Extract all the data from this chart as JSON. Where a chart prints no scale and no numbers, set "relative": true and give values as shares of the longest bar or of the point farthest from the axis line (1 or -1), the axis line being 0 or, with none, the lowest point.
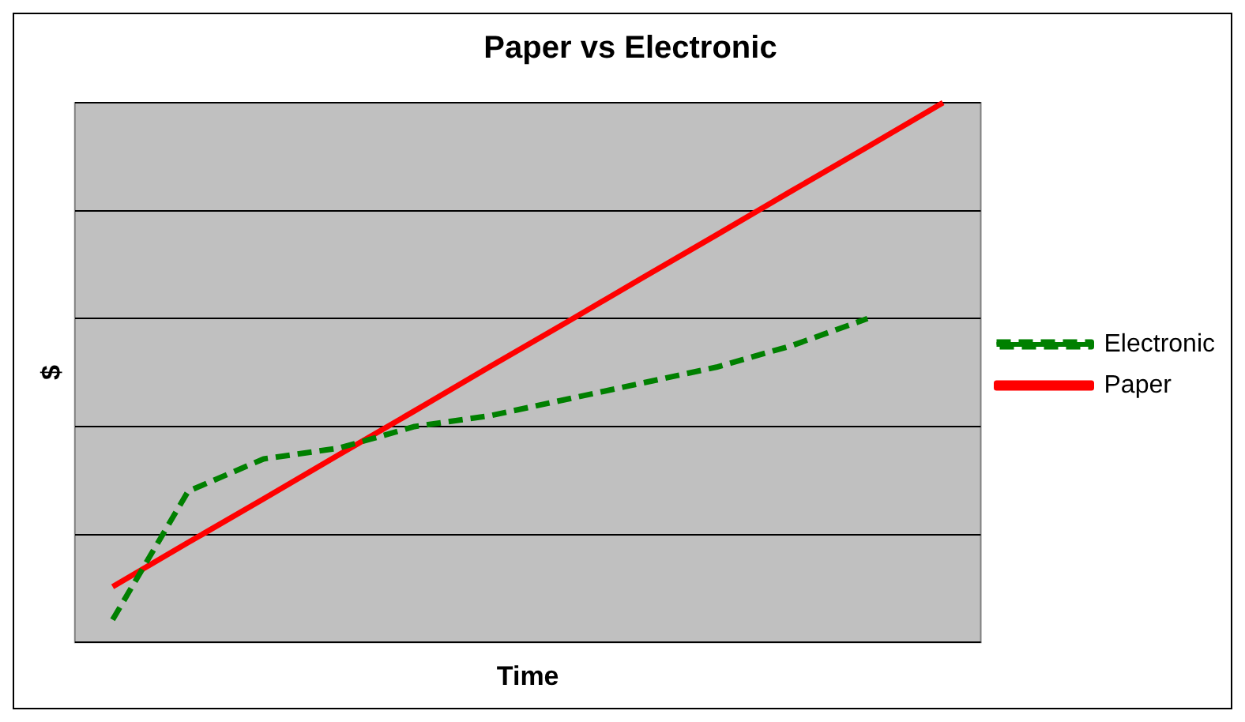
{
  "chart_data": {
    "type": "line",
    "title": "Paper vs Electronic",
    "xlabel": "Time",
    "ylabel": "$",
    "relative": true,
    "grid": "y",
    "legend": "right",
    "marker": "none",
    "categories": [
      null,
      null,
      null,
      null,
      null,
      null,
      null,
      null,
      null,
      null,
      null,
      null
    ],
    "series": [
      {
        "name": "Electronic",
        "color": "#008000",
        "line_style": "dashed",
        "values": [
          0.042,
          0.28,
          0.34,
          0.36,
          0.4,
          0.42,
          0.45,
          0.48,
          0.51,
          0.55,
          0.6,
          null
        ]
      },
      {
        "name": "Paper",
        "color": "#ff0000",
        "line_style": "solid",
        "values": [
          0.103,
          0.185,
          0.266,
          0.348,
          0.429,
          0.511,
          0.592,
          0.674,
          0.755,
          0.837,
          0.918,
          1.0
        ]
      }
    ]
  }
}
